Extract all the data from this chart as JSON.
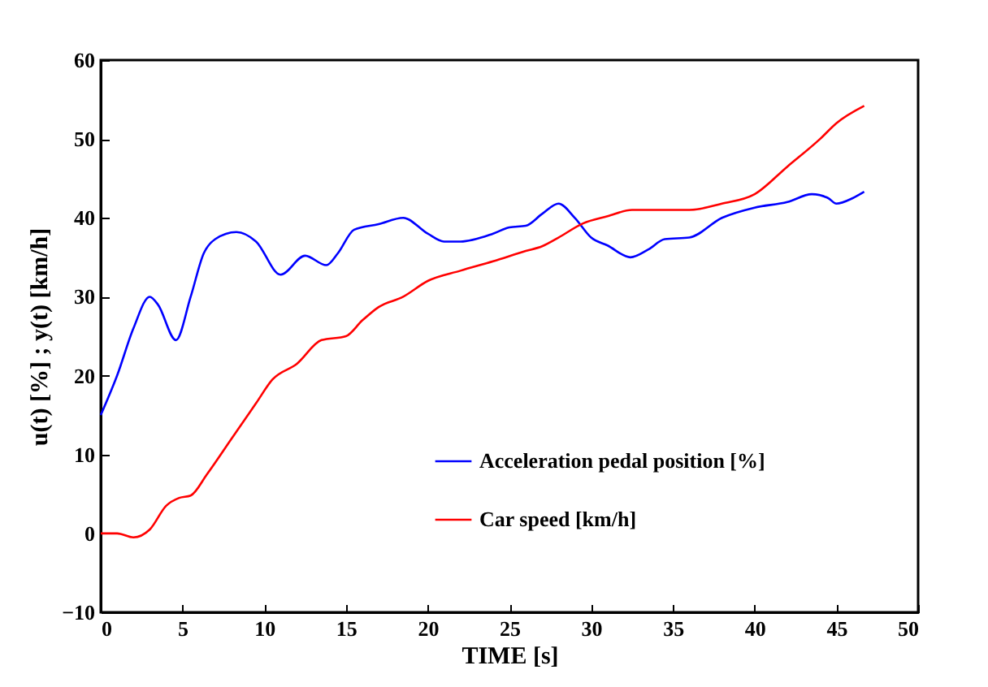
{
  "chart_data": {
    "type": "line",
    "xlabel": "TIME [s]",
    "ylabel": "u(t) [%] ; y(t) [km/h]",
    "xlim": [
      0,
      50
    ],
    "xticks": [
      0,
      5,
      10,
      15,
      20,
      25,
      30,
      35,
      40,
      45,
      50
    ],
    "ylim": [
      -10,
      60
    ],
    "yticks": [
      -10,
      0,
      10,
      20,
      30,
      40,
      50,
      60
    ],
    "grid": false,
    "legend": "bottom",
    "line_style": "solid",
    "marker": "none",
    "series": [
      {
        "name": "Acceleration pedal position [%]",
        "color": "#0000ff",
        "x": [
          0,
          1,
          2,
          3,
          3.5,
          4.6,
          5.5,
          6.3,
          7,
          8.3,
          9.5,
          11,
          12.5,
          13.8,
          14.5,
          15.5,
          17,
          18.5,
          20,
          21,
          22,
          24,
          25,
          26,
          27,
          28,
          29,
          30,
          31,
          32.4,
          33.5,
          34.5,
          36,
          38,
          40,
          42,
          43.5,
          44.5,
          45,
          46,
          46.7
        ],
        "values": [
          15,
          20,
          26,
          30,
          29,
          24.5,
          30,
          35.5,
          37.3,
          38.2,
          37,
          32.8,
          35.2,
          34,
          35.5,
          38.5,
          39.2,
          40,
          38,
          37,
          37,
          38,
          38.8,
          39,
          40.5,
          41.8,
          40,
          37.5,
          36.5,
          35,
          36,
          37.3,
          37.5,
          40,
          41.3,
          42,
          43,
          42.5,
          41.8,
          42.5,
          43.3
        ]
      },
      {
        "name": "Car speed [km/h]",
        "color": "#ff0000",
        "x": [
          0,
          1,
          2,
          3,
          4,
          4.8,
          5.5,
          6.5,
          8,
          9.5,
          10.5,
          12,
          13.5,
          15,
          16,
          17,
          18.5,
          20,
          22,
          24,
          26,
          27,
          28,
          29.5,
          31,
          32.5,
          34,
          36,
          38,
          40,
          42,
          44,
          45,
          46.7
        ],
        "values": [
          0,
          0,
          -0.5,
          0.5,
          3.5,
          4.5,
          4.8,
          7.5,
          12,
          16.5,
          19.5,
          21.5,
          24.5,
          25,
          27,
          28.7,
          30,
          32,
          33.3,
          34.5,
          35.8,
          36.4,
          37.5,
          39.3,
          40.2,
          41,
          41,
          41,
          41.8,
          43,
          46.5,
          50,
          52,
          54.2
        ]
      }
    ]
  }
}
